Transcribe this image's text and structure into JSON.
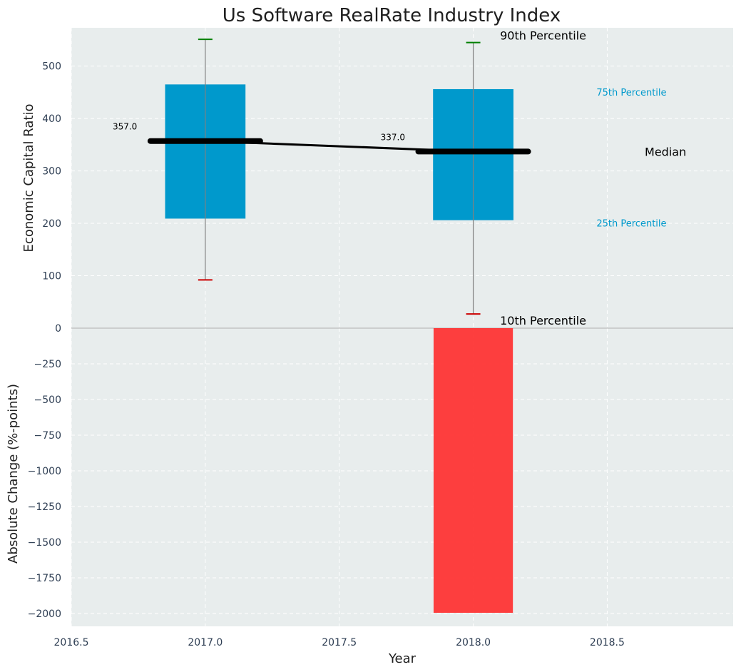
{
  "chart_data": {
    "title": "Us Software RealRate Industry Index",
    "xlabel": "Year",
    "x_ticks": [
      "2016.5",
      "2017.0",
      "2017.5",
      "2018.0",
      "2018.5"
    ],
    "x_tick_values": [
      2016.5,
      2017.0,
      2017.5,
      2018.0,
      2018.5
    ],
    "xlim": [
      2016.5,
      2018.97
    ],
    "grid": true,
    "background": "#e8eded",
    "colors": {
      "box": "#0099cc",
      "change_bar": "#ff2a2a",
      "median": "#000000",
      "whisker_top": "#008000",
      "whisker_bottom": "#cc0000",
      "whisker_line": "#808080",
      "percentile_label": "#0099cc"
    },
    "panels": [
      {
        "id": "top",
        "type": "box",
        "ylabel": "Economic Capital Ratio",
        "ylim": [
          0,
          573
        ],
        "y_ticks": [
          "100",
          "200",
          "300",
          "400",
          "500"
        ],
        "y_tick_values": [
          100,
          200,
          300,
          400,
          500
        ],
        "years": [
          2017.0,
          2018.0
        ],
        "p10": [
          92,
          27
        ],
        "p25": [
          209,
          206
        ],
        "median": [
          357,
          337
        ],
        "p75": [
          465,
          456
        ],
        "p90": [
          551,
          545
        ],
        "median_labels": [
          "357.0",
          "337.0"
        ],
        "annotations": {
          "p90": "90th Percentile",
          "p75": "75th Percentile",
          "median": "Median",
          "p25": "25th Percentile",
          "p10": "10th Percentile"
        }
      },
      {
        "id": "bottom",
        "type": "bar",
        "ylabel": "Absolute Change (%-points)",
        "ylim": [
          -2090,
          0
        ],
        "y_ticks": [
          "0",
          "−250",
          "−500",
          "−750",
          "−1000",
          "−1250",
          "−1500",
          "−1750",
          "−2000"
        ],
        "y_tick_values": [
          0,
          -250,
          -500,
          -750,
          -1000,
          -1250,
          -1500,
          -1750,
          -2000
        ],
        "x": [
          2018.0
        ],
        "values": [
          -1995
        ]
      }
    ]
  }
}
